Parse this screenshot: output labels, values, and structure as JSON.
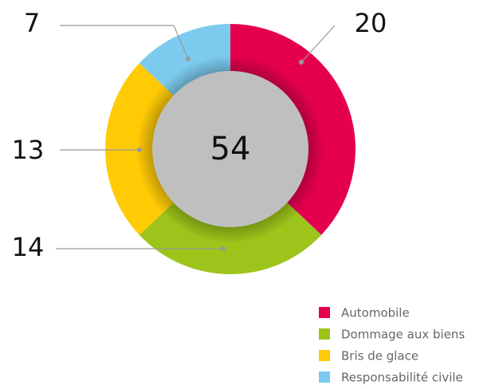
{
  "chart_data": {
    "type": "donut",
    "categories": [
      "Automobile",
      "Dommage aux biens",
      "Bris de glace",
      "Responsabilité civile"
    ],
    "values": [
      20,
      14,
      13,
      7
    ],
    "colors": [
      "#e5004f",
      "#9dc41a",
      "#ffcb05",
      "#7ccbef"
    ],
    "center_label": 54
  }
}
